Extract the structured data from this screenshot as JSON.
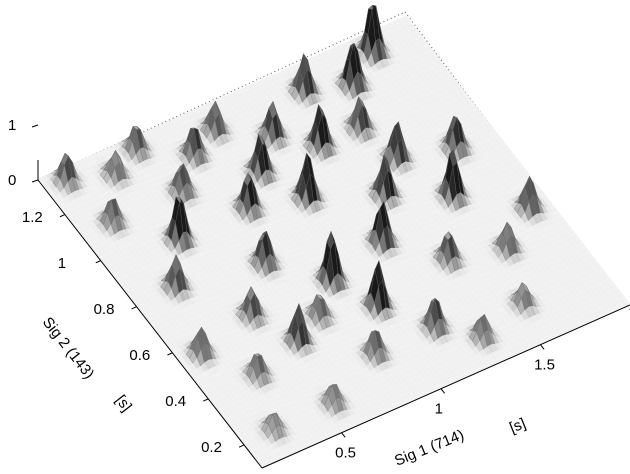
{
  "chart_data": {
    "type": "surface",
    "title": "",
    "xlabel": "Sig 1 (714)",
    "xunit": "[s]",
    "ylabel": "Sig 2 (143)",
    "yunit": "[s]",
    "zlabel": "",
    "xlim": [
      0.1,
      1.95
    ],
    "ylim": [
      0.1,
      1.35
    ],
    "zlim": [
      0,
      1
    ],
    "xticks": [
      "0.5",
      "1",
      "1.5"
    ],
    "yticks": [
      "0.2",
      "0.4",
      "0.6",
      "0.8",
      "1",
      "1.2"
    ],
    "zticks": [
      "0",
      "1"
    ],
    "colormap": "gray-inverted",
    "grid": true,
    "box": true,
    "peaks": [
      {
        "x": 1.72,
        "y": 1.28,
        "z": 1.0
      },
      {
        "x": 1.55,
        "y": 1.2,
        "z": 0.85
      },
      {
        "x": 1.35,
        "y": 1.25,
        "z": 0.7
      },
      {
        "x": 1.25,
        "y": 1.05,
        "z": 0.8
      },
      {
        "x": 1.1,
        "y": 1.15,
        "z": 0.65
      },
      {
        "x": 0.95,
        "y": 1.05,
        "z": 0.75
      },
      {
        "x": 1.05,
        "y": 0.9,
        "z": 0.85
      },
      {
        "x": 0.9,
        "y": 1.25,
        "z": 0.55
      },
      {
        "x": 0.8,
        "y": 0.95,
        "z": 0.7
      },
      {
        "x": 0.75,
        "y": 1.2,
        "z": 0.6
      },
      {
        "x": 0.6,
        "y": 1.1,
        "z": 0.55
      },
      {
        "x": 0.55,
        "y": 1.3,
        "z": 0.5
      },
      {
        "x": 0.45,
        "y": 0.95,
        "z": 0.9
      },
      {
        "x": 0.4,
        "y": 1.25,
        "z": 0.45
      },
      {
        "x": 0.3,
        "y": 0.8,
        "z": 0.6
      },
      {
        "x": 0.25,
        "y": 1.1,
        "z": 0.5
      },
      {
        "x": 0.2,
        "y": 1.3,
        "z": 0.55
      },
      {
        "x": 0.7,
        "y": 0.75,
        "z": 0.65
      },
      {
        "x": 0.9,
        "y": 0.6,
        "z": 0.95
      },
      {
        "x": 1.0,
        "y": 0.45,
        "z": 0.85
      },
      {
        "x": 1.2,
        "y": 0.65,
        "z": 0.8
      },
      {
        "x": 1.35,
        "y": 0.8,
        "z": 0.75
      },
      {
        "x": 1.5,
        "y": 0.9,
        "z": 0.7
      },
      {
        "x": 1.6,
        "y": 0.7,
        "z": 0.9
      },
      {
        "x": 1.75,
        "y": 0.85,
        "z": 0.65
      },
      {
        "x": 1.85,
        "y": 0.55,
        "z": 0.6
      },
      {
        "x": 1.65,
        "y": 0.45,
        "z": 0.5
      },
      {
        "x": 1.4,
        "y": 0.5,
        "z": 0.55
      },
      {
        "x": 1.15,
        "y": 0.3,
        "z": 0.6
      },
      {
        "x": 0.85,
        "y": 0.3,
        "z": 0.5
      },
      {
        "x": 0.6,
        "y": 0.45,
        "z": 0.7
      },
      {
        "x": 0.5,
        "y": 0.6,
        "z": 0.55
      },
      {
        "x": 0.35,
        "y": 0.4,
        "z": 0.45
      },
      {
        "x": 0.2,
        "y": 0.55,
        "z": 0.5
      },
      {
        "x": 0.25,
        "y": 0.2,
        "z": 0.35
      },
      {
        "x": 0.55,
        "y": 0.2,
        "z": 0.4
      },
      {
        "x": 1.3,
        "y": 0.2,
        "z": 0.45
      },
      {
        "x": 1.55,
        "y": 0.25,
        "z": 0.4
      },
      {
        "x": 0.75,
        "y": 0.5,
        "z": 0.45
      },
      {
        "x": 1.45,
        "y": 1.05,
        "z": 0.6
      }
    ]
  }
}
